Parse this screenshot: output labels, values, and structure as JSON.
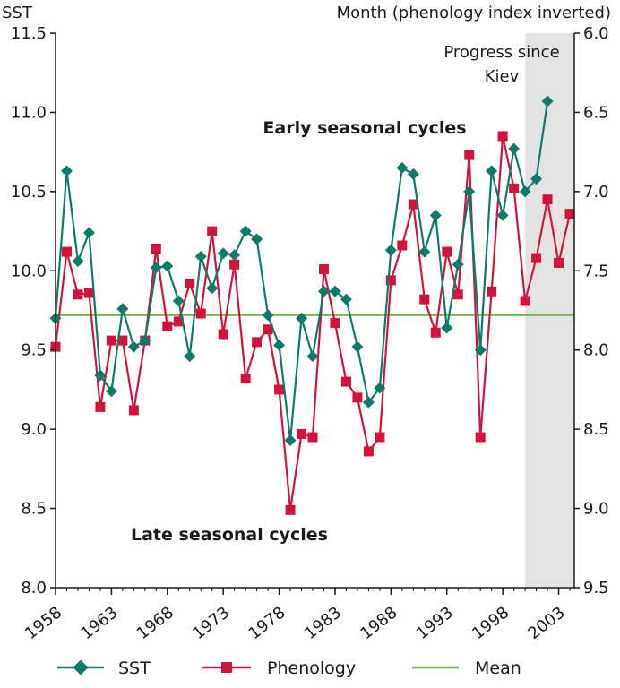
{
  "chart_data": {
    "type": "line",
    "left_axis": {
      "label": "SST",
      "range": [
        8.0,
        11.5
      ],
      "ticks": [
        "8.0",
        "8.5",
        "9.0",
        "9.5",
        "10.0",
        "10.5",
        "11.0",
        "11.5"
      ]
    },
    "right_axis": {
      "label": "Month (phenology index inverted)",
      "range": [
        9.5,
        6.0
      ],
      "inverted": true,
      "ticks": [
        "9.5",
        "9.0",
        "8.5",
        "8.0",
        "7.5",
        "7.0",
        "6.5",
        "6.0"
      ]
    },
    "x_range": [
      1958,
      2004.4
    ],
    "x_ticks": [
      "1958",
      "1963",
      "1968",
      "1973",
      "1978",
      "1983",
      "1988",
      "1993",
      "1998",
      "2003"
    ],
    "grid": false,
    "annotations": {
      "early": "Early seasonal cycles",
      "late": "Late seasonal cycles",
      "shaded_label_line1": "Progress since",
      "shaded_label_line2": "Kiev"
    },
    "shaded_region": [
      2000,
      2004.4
    ],
    "mean": 9.72,
    "series": [
      {
        "name": "SST",
        "axis": "left",
        "color": "#0f7a6a",
        "marker": "diamond",
        "x": [
          1958,
          1959,
          1960,
          1961,
          1962,
          1963,
          1964,
          1965,
          1966,
          1967,
          1968,
          1969,
          1970,
          1971,
          1972,
          1973,
          1974,
          1975,
          1976,
          1977,
          1978,
          1979,
          1980,
          1981,
          1982,
          1983,
          1984,
          1985,
          1986,
          1987,
          1988,
          1989,
          1990,
          1991,
          1992,
          1993,
          1994,
          1995,
          1996,
          1997,
          1998,
          1999,
          2000,
          2001,
          2002
        ],
        "values": [
          9.7,
          10.63,
          10.06,
          10.24,
          9.34,
          9.24,
          9.76,
          9.52,
          9.56,
          10.02,
          10.03,
          9.81,
          9.46,
          10.09,
          9.89,
          10.11,
          10.1,
          10.25,
          10.2,
          9.72,
          9.53,
          8.93,
          9.7,
          9.46,
          9.87,
          9.87,
          9.82,
          9.52,
          9.17,
          9.26,
          10.13,
          10.65,
          10.61,
          10.12,
          10.35,
          9.64,
          10.04,
          10.5,
          9.5,
          10.63,
          10.35,
          10.77,
          10.5,
          10.58,
          11.07
        ]
      },
      {
        "name": "Phenology",
        "axis": "right",
        "color": "#d4123e",
        "marker": "square",
        "x": [
          1958,
          1959,
          1960,
          1961,
          1962,
          1963,
          1964,
          1965,
          1966,
          1967,
          1968,
          1969,
          1970,
          1971,
          1972,
          1973,
          1974,
          1975,
          1976,
          1977,
          1978,
          1979,
          1980,
          1981,
          1982,
          1983,
          1984,
          1985,
          1986,
          1987,
          1988,
          1989,
          1990,
          1991,
          1992,
          1993,
          1994,
          1995,
          1996,
          1997,
          1998,
          1999,
          2000,
          2001,
          2002,
          2003,
          2004
        ],
        "values": [
          7.98,
          7.38,
          7.65,
          7.64,
          8.36,
          7.94,
          7.94,
          8.38,
          7.94,
          7.36,
          7.85,
          7.82,
          7.58,
          7.77,
          7.25,
          7.9,
          7.46,
          8.18,
          7.95,
          7.87,
          8.25,
          9.01,
          8.53,
          8.55,
          7.49,
          7.83,
          8.2,
          8.3,
          8.64,
          8.55,
          7.56,
          7.34,
          7.08,
          7.68,
          7.89,
          7.38,
          7.65,
          6.77,
          8.55,
          7.63,
          6.65,
          6.98,
          7.69,
          7.42,
          7.05,
          7.45,
          7.14
        ]
      },
      {
        "name": "Mean",
        "axis": "left",
        "color": "#6db33f",
        "marker": "none"
      }
    ]
  }
}
